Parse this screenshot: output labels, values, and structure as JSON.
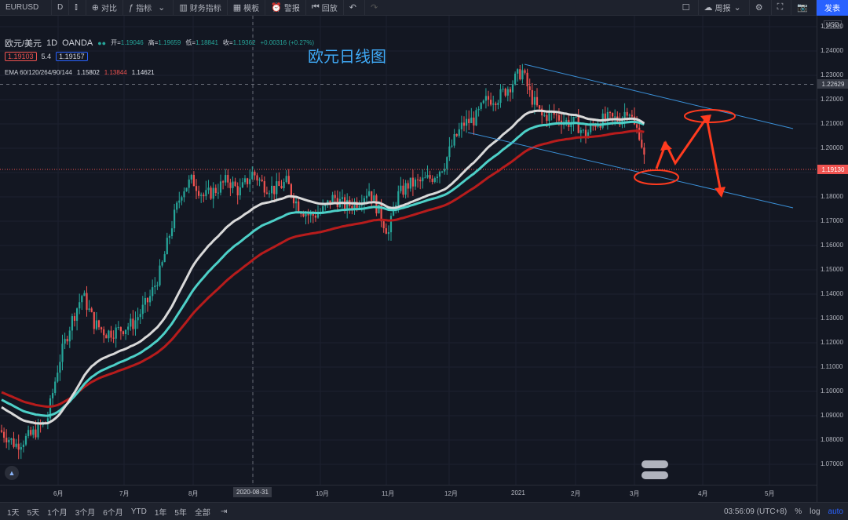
{
  "toolbar": {
    "symbol": "EURUSD",
    "interval": "D",
    "compare": "对比",
    "indicators": "指标",
    "financials": "财务指标",
    "templates": "模板",
    "alert": "警报",
    "replay": "回放",
    "layout": "周报",
    "publish": "发表"
  },
  "legend": {
    "pair": "欧元/美元",
    "tf": "1D",
    "broker": "OANDA",
    "open_label": "开=",
    "open": "1.19046",
    "high_label": "高=",
    "high": "1.19659",
    "low_label": "低=",
    "low": "1.18841",
    "close_label": "收=",
    "close": "1.19362",
    "change": "+0.00316 (+0.27%)",
    "bid": "1.19103",
    "spread": "5.4",
    "ask": "1.19157",
    "ema_label": "EMA 60/120/264/90/144",
    "ema1": "1.15802",
    "ema2": "1.13844",
    "ema3": "1.14621"
  },
  "chart_title": "欧元日线图",
  "price_axis": {
    "currency": "USD",
    "ticks": [
      "1.25000",
      "1.24000",
      "1.23000",
      "1.22000",
      "1.21000",
      "1.20000",
      "1.19000",
      "1.18000",
      "1.17000",
      "1.16000",
      "1.15000",
      "1.14000",
      "1.13000",
      "1.12000",
      "1.11000",
      "1.10000",
      "1.09000",
      "1.08000",
      "1.07000"
    ],
    "crosshair_price": "1.22629",
    "last_price": "1.19130"
  },
  "time_axis": {
    "ticks": [
      "6月",
      "7月",
      "8月",
      "2020-08-31",
      "10月",
      "11月",
      "12月",
      "2021",
      "2月",
      "3月",
      "4月",
      "5月"
    ]
  },
  "bottom_bar": {
    "ranges": [
      "1天",
      "5天",
      "1个月",
      "3个月",
      "6个月",
      "YTD",
      "1年",
      "5年",
      "全部"
    ],
    "clock": "03:56:09 (UTC+8)",
    "percent": "%",
    "log": "log",
    "auto": "auto"
  },
  "colors": {
    "up": "#26a69a",
    "down": "#ef5350",
    "ema_fast": "#d9d9d9",
    "ema_mid": "#4dd0c8",
    "ema_slow": "#b71c1c",
    "annotation": "#ff3b1f",
    "channel": "#3a8fd6"
  }
}
